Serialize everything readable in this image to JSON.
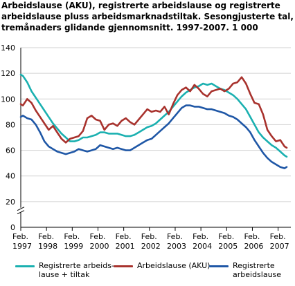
{
  "title_lines": [
    "Arbeidslause (AKU), registrerte arbeidslause og registrerte",
    "arbeidslause pluss arbeidsmarknadstiltak. Sesongjusterte tal,",
    "tremånaders glidande gjennomsnitt. 1997-2007. 1 000"
  ],
  "chart_data": {
    "type": "line",
    "title": "Arbeidslause (AKU), registrerte arbeidslause og registrerte arbeidslause pluss arbeidsmarknadstiltak. Sesongjusterte tal, tremånaders glidande gjennomsnitt. 1997-2007. 1 000",
    "ylim": [
      0,
      140
    ],
    "yticks": [
      0,
      20,
      40,
      60,
      80,
      100,
      120,
      140
    ],
    "xlim": [
      "1997-02",
      "2007-06"
    ],
    "xticks": [
      {
        "month": "Feb.",
        "year": "1997"
      },
      {
        "month": "Feb.",
        "year": "1998"
      },
      {
        "month": "Feb.",
        "year": "1999"
      },
      {
        "month": "Feb.",
        "year": "2000"
      },
      {
        "month": "Feb.",
        "year": "2001"
      },
      {
        "month": "Feb.",
        "year": "2002"
      },
      {
        "month": "Feb.",
        "year": "2003"
      },
      {
        "month": "Feb.",
        "year": "2004"
      },
      {
        "month": "Feb.",
        "year": "2005"
      },
      {
        "month": "Feb.",
        "year": "2006"
      },
      {
        "month": "Feb.",
        "year": "2007"
      }
    ],
    "grid": "horizontal",
    "axis_break": true,
    "series": [
      {
        "name": "Registrerte arbeidslause + tiltak",
        "color": "#1ab0b0",
        "points": [
          [
            "1997-02",
            119
          ],
          [
            "1997-03",
            118
          ],
          [
            "1997-05",
            113
          ],
          [
            "1997-07",
            106
          ],
          [
            "1997-09",
            101
          ],
          [
            "1997-11",
            96
          ],
          [
            "1998-01",
            91
          ],
          [
            "1998-03",
            86
          ],
          [
            "1998-05",
            81
          ],
          [
            "1998-07",
            77
          ],
          [
            "1998-09",
            73
          ],
          [
            "1998-11",
            70
          ],
          [
            "1999-01",
            67
          ],
          [
            "1999-03",
            67
          ],
          [
            "1999-05",
            68
          ],
          [
            "1999-07",
            70
          ],
          [
            "1999-09",
            70
          ],
          [
            "1999-11",
            71
          ],
          [
            "2000-01",
            72
          ],
          [
            "2000-03",
            74
          ],
          [
            "2000-05",
            74
          ],
          [
            "2000-07",
            73
          ],
          [
            "2000-09",
            73
          ],
          [
            "2000-11",
            73
          ],
          [
            "2001-01",
            72
          ],
          [
            "2001-03",
            71
          ],
          [
            "2001-05",
            71
          ],
          [
            "2001-07",
            72
          ],
          [
            "2001-09",
            74
          ],
          [
            "2001-11",
            76
          ],
          [
            "2002-01",
            78
          ],
          [
            "2002-03",
            79
          ],
          [
            "2002-05",
            81
          ],
          [
            "2002-07",
            84
          ],
          [
            "2002-09",
            87
          ],
          [
            "2002-11",
            90
          ],
          [
            "2003-01",
            94
          ],
          [
            "2003-03",
            98
          ],
          [
            "2003-05",
            102
          ],
          [
            "2003-07",
            105
          ],
          [
            "2003-09",
            107
          ],
          [
            "2003-11",
            109
          ],
          [
            "2004-01",
            110
          ],
          [
            "2004-03",
            112
          ],
          [
            "2004-05",
            111
          ],
          [
            "2004-07",
            112
          ],
          [
            "2004-09",
            110
          ],
          [
            "2004-11",
            108
          ],
          [
            "2005-01",
            107
          ],
          [
            "2005-03",
            105
          ],
          [
            "2005-05",
            103
          ],
          [
            "2005-07",
            100
          ],
          [
            "2005-09",
            96
          ],
          [
            "2005-11",
            92
          ],
          [
            "2006-01",
            86
          ],
          [
            "2006-03",
            80
          ],
          [
            "2006-05",
            74
          ],
          [
            "2006-07",
            70
          ],
          [
            "2006-09",
            67
          ],
          [
            "2006-11",
            64
          ],
          [
            "2007-01",
            62
          ],
          [
            "2007-03",
            59
          ],
          [
            "2007-05",
            56
          ],
          [
            "2007-06",
            55
          ]
        ]
      },
      {
        "name": "Arbeidslause (AKU)",
        "color": "#a8322d",
        "points": [
          [
            "1997-02",
            96
          ],
          [
            "1997-03",
            95
          ],
          [
            "1997-05",
            100
          ],
          [
            "1997-07",
            97
          ],
          [
            "1997-09",
            91
          ],
          [
            "1997-11",
            86
          ],
          [
            "1998-01",
            81
          ],
          [
            "1998-03",
            76
          ],
          [
            "1998-05",
            79
          ],
          [
            "1998-07",
            74
          ],
          [
            "1998-09",
            69
          ],
          [
            "1998-11",
            66
          ],
          [
            "1999-01",
            69
          ],
          [
            "1999-03",
            70
          ],
          [
            "1999-05",
            71
          ],
          [
            "1999-07",
            75
          ],
          [
            "1999-09",
            85
          ],
          [
            "1999-11",
            87
          ],
          [
            "2000-01",
            84
          ],
          [
            "2000-03",
            83
          ],
          [
            "2000-05",
            76
          ],
          [
            "2000-07",
            80
          ],
          [
            "2000-09",
            81
          ],
          [
            "2000-11",
            79
          ],
          [
            "2001-01",
            83
          ],
          [
            "2001-03",
            85
          ],
          [
            "2001-05",
            82
          ],
          [
            "2001-07",
            80
          ],
          [
            "2001-09",
            84
          ],
          [
            "2001-11",
            88
          ],
          [
            "2002-01",
            92
          ],
          [
            "2002-03",
            90
          ],
          [
            "2002-05",
            91
          ],
          [
            "2002-07",
            90
          ],
          [
            "2002-09",
            94
          ],
          [
            "2002-11",
            88
          ],
          [
            "2003-01",
            96
          ],
          [
            "2003-03",
            103
          ],
          [
            "2003-05",
            107
          ],
          [
            "2003-07",
            109
          ],
          [
            "2003-09",
            106
          ],
          [
            "2003-11",
            111
          ],
          [
            "2004-01",
            108
          ],
          [
            "2004-03",
            104
          ],
          [
            "2004-05",
            102
          ],
          [
            "2004-07",
            106
          ],
          [
            "2004-09",
            107
          ],
          [
            "2004-11",
            108
          ],
          [
            "2005-01",
            106
          ],
          [
            "2005-03",
            108
          ],
          [
            "2005-05",
            112
          ],
          [
            "2005-07",
            113
          ],
          [
            "2005-09",
            117
          ],
          [
            "2005-11",
            112
          ],
          [
            "2006-01",
            104
          ],
          [
            "2006-03",
            97
          ],
          [
            "2006-05",
            96
          ],
          [
            "2006-07",
            88
          ],
          [
            "2006-09",
            76
          ],
          [
            "2006-11",
            71
          ],
          [
            "2007-01",
            67
          ],
          [
            "2007-03",
            68
          ],
          [
            "2007-05",
            63
          ],
          [
            "2007-06",
            62
          ]
        ]
      },
      {
        "name": "Registrerte arbeidslause",
        "color": "#1f57a6",
        "points": [
          [
            "1997-02",
            86
          ],
          [
            "1997-03",
            87
          ],
          [
            "1997-05",
            85
          ],
          [
            "1997-07",
            84
          ],
          [
            "1997-09",
            80
          ],
          [
            "1997-11",
            74
          ],
          [
            "1998-01",
            67
          ],
          [
            "1998-03",
            63
          ],
          [
            "1998-05",
            61
          ],
          [
            "1998-07",
            59
          ],
          [
            "1998-09",
            58
          ],
          [
            "1998-11",
            57
          ],
          [
            "1999-01",
            58
          ],
          [
            "1999-03",
            59
          ],
          [
            "1999-05",
            61
          ],
          [
            "1999-07",
            60
          ],
          [
            "1999-09",
            59
          ],
          [
            "1999-11",
            60
          ],
          [
            "2000-01",
            61
          ],
          [
            "2000-03",
            64
          ],
          [
            "2000-05",
            63
          ],
          [
            "2000-07",
            62
          ],
          [
            "2000-09",
            61
          ],
          [
            "2000-11",
            62
          ],
          [
            "2001-01",
            61
          ],
          [
            "2001-03",
            60
          ],
          [
            "2001-05",
            60
          ],
          [
            "2001-07",
            62
          ],
          [
            "2001-09",
            64
          ],
          [
            "2001-11",
            66
          ],
          [
            "2002-01",
            68
          ],
          [
            "2002-03",
            69
          ],
          [
            "2002-05",
            72
          ],
          [
            "2002-07",
            75
          ],
          [
            "2002-09",
            78
          ],
          [
            "2002-11",
            81
          ],
          [
            "2003-01",
            85
          ],
          [
            "2003-03",
            89
          ],
          [
            "2003-05",
            93
          ],
          [
            "2003-07",
            95
          ],
          [
            "2003-09",
            95
          ],
          [
            "2003-11",
            94
          ],
          [
            "2004-01",
            94
          ],
          [
            "2004-03",
            93
          ],
          [
            "2004-05",
            92
          ],
          [
            "2004-07",
            92
          ],
          [
            "2004-09",
            91
          ],
          [
            "2004-11",
            90
          ],
          [
            "2005-01",
            89
          ],
          [
            "2005-03",
            87
          ],
          [
            "2005-05",
            86
          ],
          [
            "2005-07",
            84
          ],
          [
            "2005-09",
            81
          ],
          [
            "2005-11",
            78
          ],
          [
            "2006-01",
            74
          ],
          [
            "2006-03",
            68
          ],
          [
            "2006-05",
            63
          ],
          [
            "2006-07",
            58
          ],
          [
            "2006-09",
            54
          ],
          [
            "2006-11",
            51
          ],
          [
            "2007-01",
            49
          ],
          [
            "2007-03",
            47
          ],
          [
            "2007-05",
            46
          ],
          [
            "2007-06",
            47
          ]
        ]
      }
    ]
  },
  "legend": [
    {
      "label": "Registrerte arbeids-\nlause + tiltak",
      "color": "#1ab0b0"
    },
    {
      "label": "Arbeidslause (AKU)",
      "color": "#a8322d"
    },
    {
      "label": "Registrerte\narbeidslause",
      "color": "#1f57a6"
    }
  ]
}
